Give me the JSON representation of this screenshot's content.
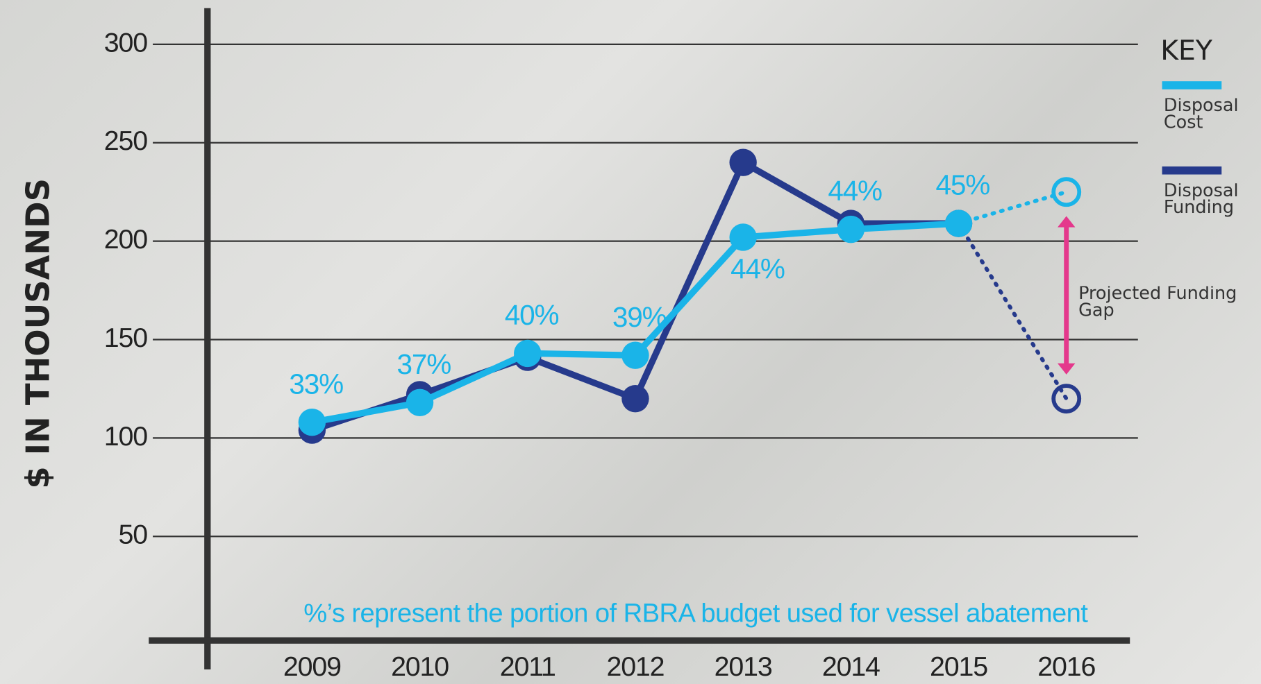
{
  "chart_data": {
    "type": "line",
    "y_axis_label": "$ IN THOUSANDS",
    "note": "%’s represent the portion of RBRA budget used for vessel abatement",
    "legend_title": "KEY",
    "gap_annotation": "Projected Funding Gap",
    "categories": [
      "2009",
      "2010",
      "2011",
      "2012",
      "2013",
      "2014",
      "2015",
      "2016"
    ],
    "series": [
      {
        "name": "Disposal Funding",
        "color": "#263a8c",
        "values": [
          104,
          122,
          141,
          120,
          240,
          209,
          209,
          120
        ]
      },
      {
        "name": "Disposal Cost",
        "color": "#1ab4e8",
        "values": [
          108,
          118,
          143,
          142,
          202,
          206,
          209,
          225
        ],
        "value_labels": [
          "33%",
          "37%",
          "40%",
          "39%",
          "44%",
          "44%",
          "45%",
          null
        ]
      }
    ],
    "projected_last": true,
    "gap_color": "#e4388c",
    "ylim": [
      0,
      300
    ],
    "yticks": [
      50,
      100,
      150,
      200,
      250,
      300
    ],
    "grid": true
  }
}
